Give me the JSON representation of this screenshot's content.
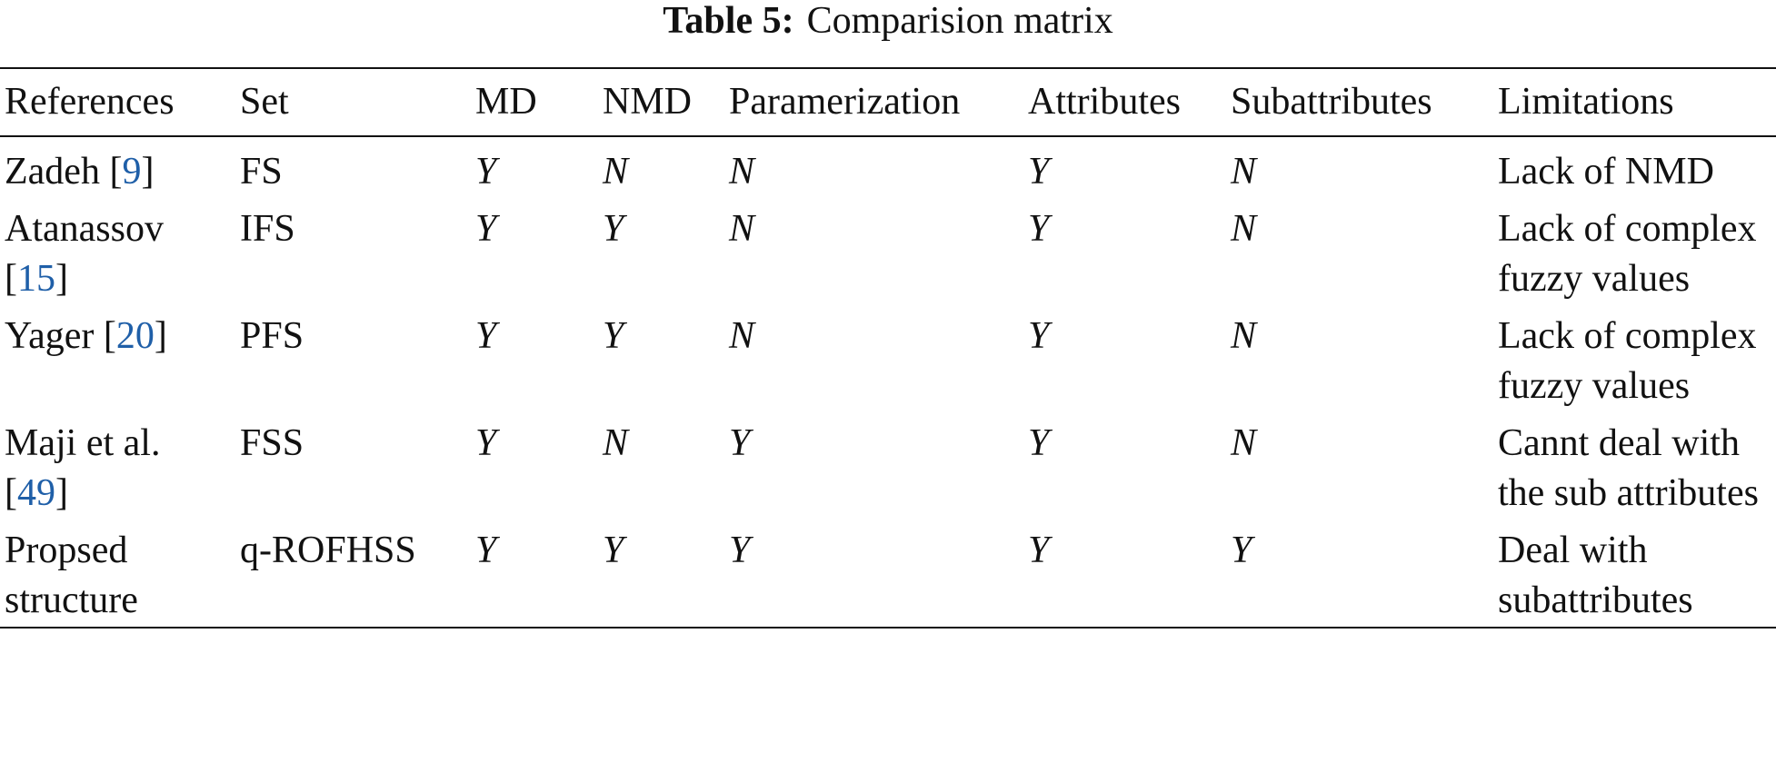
{
  "caption": {
    "label": "Table 5:",
    "title": "Comparision matrix"
  },
  "table": {
    "headers": [
      "References",
      "Set",
      "MD",
      "NMD",
      "Paramerization",
      "Attributes",
      "Subattributes",
      "Limitations"
    ],
    "rows": [
      [
        [
          {
            "text": "Zadeh ["
          },
          {
            "text": "9",
            "link": true
          },
          {
            "text": "]"
          }
        ],
        "FS",
        "Y",
        "N",
        "N",
        "Y",
        "N",
        "Lack of NMD"
      ],
      [
        [
          {
            "text": "Atanassov ["
          },
          {
            "text": "15",
            "link": true
          },
          {
            "text": "]"
          }
        ],
        "IFS",
        "Y",
        "Y",
        "N",
        "Y",
        "N",
        "Lack of complex fuzzy values"
      ],
      [
        [
          {
            "text": "Yager ["
          },
          {
            "text": "20",
            "link": true
          },
          {
            "text": "]"
          }
        ],
        "PFS",
        "Y",
        "Y",
        "N",
        "Y",
        "N",
        "Lack of complex fuzzy values"
      ],
      [
        [
          {
            "text": "Maji et al. ["
          },
          {
            "text": "49",
            "link": true
          },
          {
            "text": "]"
          }
        ],
        "FSS",
        "Y",
        "N",
        "Y",
        "Y",
        "N",
        "Cannt deal with the sub attributes"
      ],
      [
        [
          {
            "text": "Propsed structure"
          }
        ],
        "q-ROFHSS",
        "Y",
        "Y",
        "Y",
        "Y",
        "Y",
        "Deal with subattributes"
      ]
    ]
  }
}
